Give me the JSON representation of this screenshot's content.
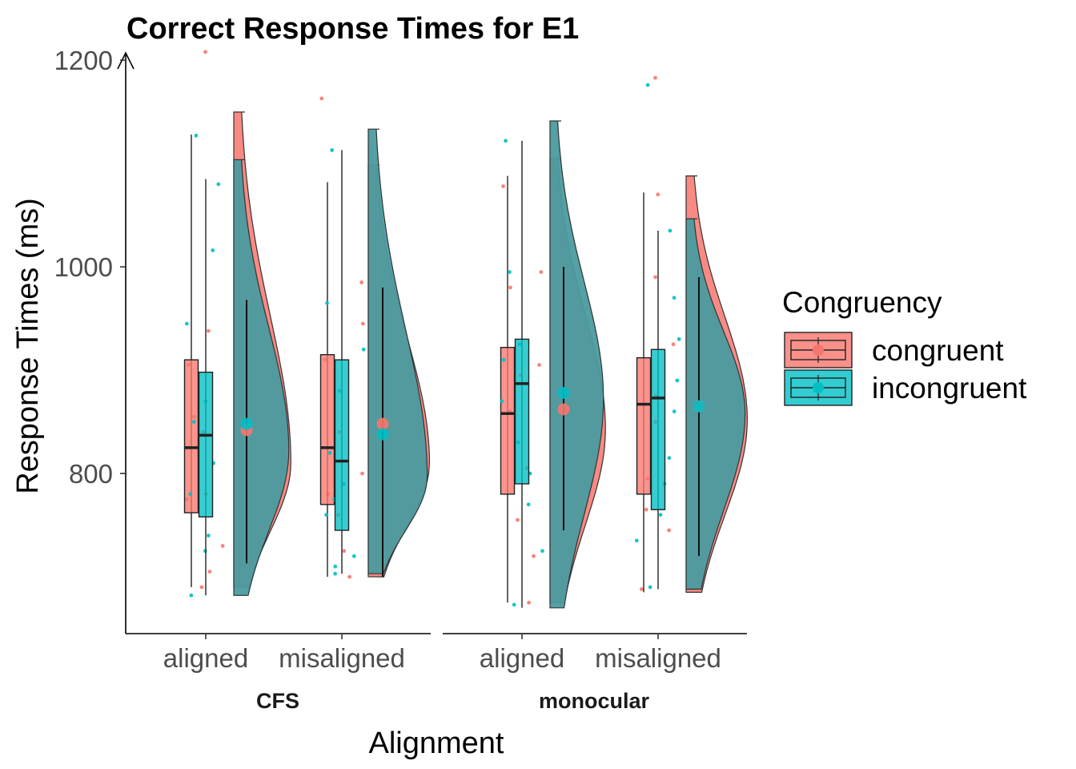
{
  "chart_data": {
    "type": "raincloud",
    "title": "Correct Response Times for E1",
    "xlabel": "Alignment",
    "ylabel": "Response Times (ms)",
    "ylim": [
      645,
      1235
    ],
    "yticks": [
      800,
      1000,
      1200
    ],
    "categories": [
      "aligned",
      "misaligned"
    ],
    "facets": [
      "CFS",
      "monocular"
    ],
    "legend": {
      "title": "Congruency",
      "position": "right",
      "entries": [
        "congruent",
        "incongruent"
      ]
    },
    "colors": {
      "congruent": "#F8766D",
      "incongruent": "#00BFC4",
      "violin_overlap": "#4A9BA0"
    },
    "series": [
      {
        "name": "congruent",
        "groups": [
          {
            "facet": "CFS",
            "category": "aligned",
            "min": 690,
            "q1": 762,
            "median": 825,
            "q3": 910,
            "max": 1128,
            "mean": 842,
            "points": [
              1208,
              938,
              905,
              855,
              840,
              780,
              775,
              730,
              705,
              690
            ]
          },
          {
            "facet": "CFS",
            "category": "misaligned",
            "min": 700,
            "q1": 770,
            "median": 825,
            "q3": 915,
            "max": 1082,
            "mean": 848,
            "points": [
              1163,
              985,
              945,
              910,
              840,
              800,
              780,
              760,
              725,
              700
            ]
          },
          {
            "facet": "monocular",
            "category": "aligned",
            "min": 675,
            "q1": 780,
            "median": 858,
            "q3": 922,
            "max": 1088,
            "mean": 862,
            "points": [
              1078,
              995,
              980,
              905,
              895,
              860,
              805,
              755,
              720,
              675
            ]
          },
          {
            "facet": "monocular",
            "category": "misaligned",
            "min": 685,
            "q1": 780,
            "median": 867,
            "q3": 912,
            "max": 1072,
            "mean": 865,
            "points": [
              1183,
              1070,
              990,
              925,
              875,
              850,
              795,
              765,
              745,
              688
            ]
          }
        ]
      },
      {
        "name": "incongruent",
        "groups": [
          {
            "facet": "CFS",
            "category": "aligned",
            "min": 682,
            "q1": 758,
            "median": 837,
            "q3": 898,
            "max": 1085,
            "mean": 848,
            "points": [
              1127,
              1080,
              1016,
              945,
              870,
              850,
              810,
              780,
              740,
              725,
              682
            ]
          },
          {
            "facet": "CFS",
            "category": "misaligned",
            "min": 703,
            "q1": 745,
            "median": 812,
            "q3": 910,
            "max": 1113,
            "mean": 838,
            "points": [
              1113,
              965,
              920,
              880,
              820,
              790,
              775,
              760,
              720,
              710,
              703
            ]
          },
          {
            "facet": "monocular",
            "category": "aligned",
            "min": 670,
            "q1": 790,
            "median": 887,
            "q3": 930,
            "max": 1122,
            "mean": 878,
            "points": [
              1122,
              995,
              925,
              910,
              870,
              830,
              800,
              770,
              725,
              673
            ]
          },
          {
            "facet": "monocular",
            "category": "misaligned",
            "min": 688,
            "q1": 765,
            "median": 873,
            "q3": 920,
            "max": 1035,
            "mean": 865,
            "points": [
              1176,
              1035,
              970,
              930,
              890,
              860,
              815,
              790,
              760,
              735,
              690
            ]
          }
        ]
      }
    ]
  }
}
